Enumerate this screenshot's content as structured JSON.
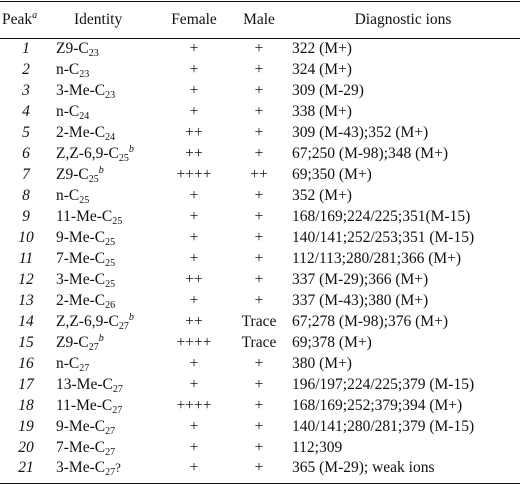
{
  "header": {
    "peak": "Peak",
    "peak_note": "a",
    "identity": "Identity",
    "female": "Female",
    "male": "Male",
    "diagnostic": "Diagnostic ions"
  },
  "rows": [
    {
      "peak": "1",
      "id_prefix": "Z9-C",
      "id_sub": "23",
      "id_sup": "",
      "female": "+",
      "male": "+",
      "ions": "322 (M+)"
    },
    {
      "peak": "2",
      "id_prefix": "n-C",
      "id_sub": "23",
      "id_sup": "",
      "female": "+",
      "male": "+",
      "ions": "324 (M+)"
    },
    {
      "peak": "3",
      "id_prefix": "3-Me-C",
      "id_sub": "23",
      "id_sup": "",
      "female": "+",
      "male": "+",
      "ions": "309 (M-29)"
    },
    {
      "peak": "4",
      "id_prefix": "n-C",
      "id_sub": "24",
      "id_sup": "",
      "female": "+",
      "male": "+",
      "ions": "338 (M+)"
    },
    {
      "peak": "5",
      "id_prefix": "2-Me-C",
      "id_sub": "24",
      "id_sup": "",
      "female": "++",
      "male": "+",
      "ions": "309 (M-43);352 (M+)"
    },
    {
      "peak": "6",
      "id_prefix": "Z,Z-6,9-C",
      "id_sub": "25",
      "id_sup": "b",
      "female": "++",
      "male": "+",
      "ions": "67;250 (M-98);348 (M+)"
    },
    {
      "peak": "7",
      "id_prefix": "Z9-C",
      "id_sub": "25",
      "id_sup": "b",
      "female": "++++",
      "male": "++",
      "ions": "69;350 (M+)"
    },
    {
      "peak": "8",
      "id_prefix": "n-C",
      "id_sub": "25",
      "id_sup": "",
      "female": "+",
      "male": "+",
      "ions": "352 (M+)"
    },
    {
      "peak": "9",
      "id_prefix": "11-Me-C",
      "id_sub": "25",
      "id_sup": "",
      "female": "+",
      "male": "+",
      "ions": "168/169;224/225;351(M-15)"
    },
    {
      "peak": "10",
      "id_prefix": "9-Me-C",
      "id_sub": "25",
      "id_sup": "",
      "female": "+",
      "male": "+",
      "ions": "140/141;252/253;351 (M-15)"
    },
    {
      "peak": "11",
      "id_prefix": "7-Me-C",
      "id_sub": "25",
      "id_sup": "",
      "female": "+",
      "male": "+",
      "ions": "112/113;280/281;366 (M+)"
    },
    {
      "peak": "12",
      "id_prefix": "3-Me-C",
      "id_sub": "25",
      "id_sup": "",
      "female": "++",
      "male": "+",
      "ions": "337 (M-29);366 (M+)"
    },
    {
      "peak": "13",
      "id_prefix": "2-Me-C",
      "id_sub": "26",
      "id_sup": "",
      "female": "+",
      "male": "+",
      "ions": "337 (M-43);380 (M+)"
    },
    {
      "peak": "14",
      "id_prefix": "Z,Z-6,9-C",
      "id_sub": "27",
      "id_sup": "b",
      "female": "++",
      "male": "Trace",
      "ions": "67;278 (M-98);376 (M+)"
    },
    {
      "peak": "15",
      "id_prefix": "Z9-C",
      "id_sub": "27",
      "id_sup": "b",
      "female": "++++",
      "male": "Trace",
      "ions": "69;378 (M+)"
    },
    {
      "peak": "16",
      "id_prefix": "n-C",
      "id_sub": "27",
      "id_sup": "",
      "female": "+",
      "male": "+",
      "ions": "380 (M+)"
    },
    {
      "peak": "17",
      "id_prefix": "13-Me-C",
      "id_sub": "27",
      "id_sup": "",
      "female": "+",
      "male": "+",
      "ions": "196/197;224/225;379 (M-15)"
    },
    {
      "peak": "18",
      "id_prefix": "11-Me-C",
      "id_sub": "27",
      "id_sup": "",
      "female": "++++",
      "male": "+",
      "ions": "168/169;252;379;394 (M+)"
    },
    {
      "peak": "19",
      "id_prefix": "9-Me-C",
      "id_sub": "27",
      "id_sup": "",
      "female": "+",
      "male": "+",
      "ions": "140/141;280/281;379 (M-15)"
    },
    {
      "peak": "20",
      "id_prefix": "7-Me-C",
      "id_sub": "27",
      "id_sup": "",
      "female": "+",
      "male": "+",
      "ions": "112;309"
    },
    {
      "peak": "21",
      "id_prefix": "3-Me-C",
      "id_sub": "27",
      "id_sup": "?",
      "female": "+",
      "male": "+",
      "ions": "365 (M-29); weak ions"
    }
  ]
}
